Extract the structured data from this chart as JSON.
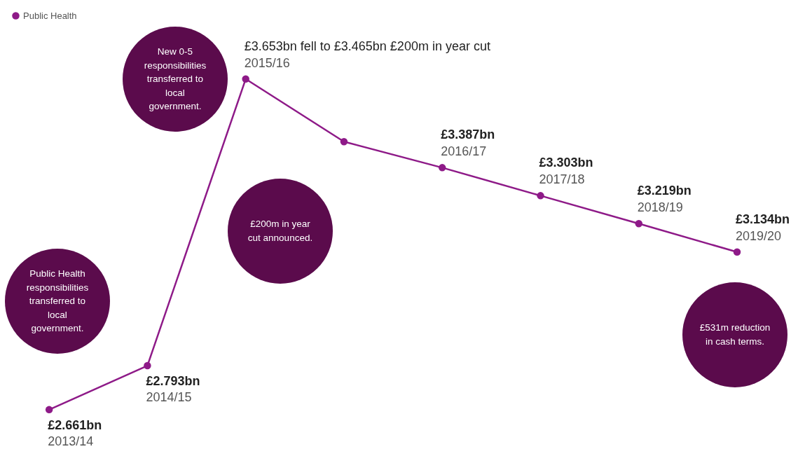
{
  "chart_data": {
    "type": "line",
    "categories": [
      null,
      null,
      null,
      null,
      null,
      null,
      null,
      null
    ],
    "ylim": [
      2.543,
      3.89
    ],
    "tick_labels": false,
    "legend": "top left",
    "marker": "circle",
    "line_style": "solid",
    "series": [
      {
        "name": "Public Health",
        "color": "#8e1a88",
        "values": [
          2.661,
          2.793,
          3.653,
          3.465,
          3.387,
          3.303,
          3.219,
          3.134
        ],
        "value_labels": [
          "£2.661bn",
          "£2.793bn",
          null,
          null,
          "£3.387bn",
          "£3.303bn",
          "£3.219bn",
          "£3.134bn"
        ]
      }
    ],
    "annotations": [
      "£3.653bn fell to £3.465bn £200m in year cut",
      "2013/14",
      "2014/15",
      "2015/16",
      "2016/17",
      "2017/18",
      "2018/19",
      "2019/20",
      "New 0-5 responsibilities transferred to local government.",
      "£200m in year cut announced.",
      "Public Health responsibilities transferred to local government.",
      "£531m reduction in cash terms."
    ]
  }
}
